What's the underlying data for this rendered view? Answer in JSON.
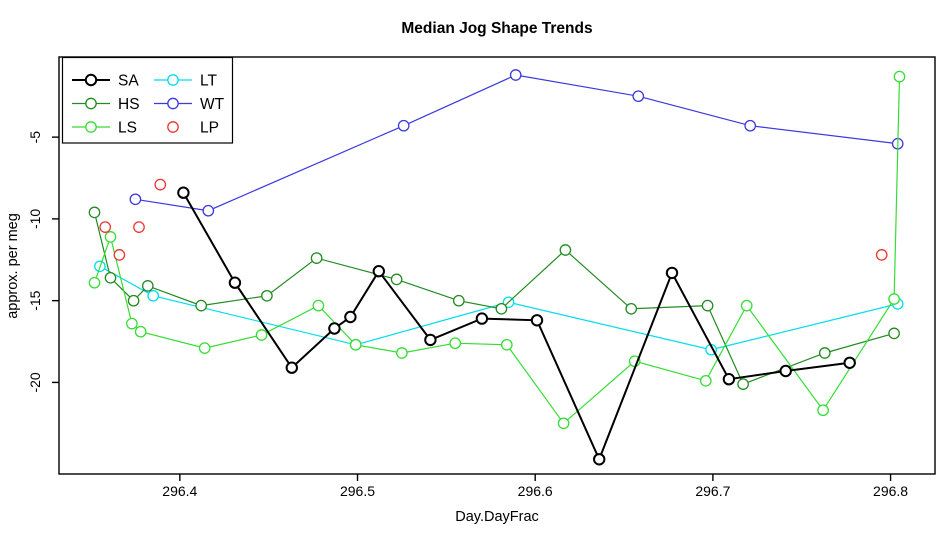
{
  "chart_data": {
    "type": "line",
    "title": "Median Jog Shape Trends",
    "xlabel": "Day.DayFrac",
    "ylabel": "approx. per meg",
    "xlim": [
      296.332,
      296.825
    ],
    "ylim": [
      -25.6,
      -0.1
    ],
    "x_ticks": [
      296.4,
      296.5,
      296.6,
      296.7,
      296.8
    ],
    "y_ticks": [
      -5,
      -10,
      -15,
      -20
    ],
    "grid": false,
    "legend_position": "topleft",
    "legend_columns": [
      [
        "SA",
        "HS",
        "LS"
      ],
      [
        "LT",
        "WT",
        "LP"
      ]
    ],
    "series": [
      {
        "name": "SA",
        "color": "#000000",
        "line_style": "solid",
        "line_width": 2,
        "marker": "open-circle",
        "points": [
          [
            296.402,
            -8.4
          ],
          [
            296.431,
            -13.9
          ],
          [
            296.463,
            -19.1
          ],
          [
            296.487,
            -16.7
          ],
          [
            296.496,
            -16.0
          ],
          [
            296.512,
            -13.2
          ],
          [
            296.541,
            -17.4
          ],
          [
            296.57,
            -16.1
          ],
          [
            296.601,
            -16.2
          ],
          [
            296.636,
            -24.7
          ],
          [
            296.677,
            -13.3
          ],
          [
            296.709,
            -19.8
          ],
          [
            296.741,
            -19.3
          ],
          [
            296.777,
            -18.8
          ]
        ]
      },
      {
        "name": "HS",
        "color": "#228B22",
        "line_style": "solid",
        "line_width": 1.2,
        "marker": "open-circle",
        "points": [
          [
            296.352,
            -9.6
          ],
          [
            296.361,
            -13.6
          ],
          [
            296.374,
            -15.0
          ],
          [
            296.382,
            -14.1
          ],
          [
            296.412,
            -15.3
          ],
          [
            296.449,
            -14.7
          ],
          [
            296.477,
            -12.4
          ],
          [
            296.522,
            -13.7
          ],
          [
            296.557,
            -15.0
          ],
          [
            296.581,
            -15.5
          ],
          [
            296.617,
            -11.9
          ],
          [
            296.654,
            -15.5
          ],
          [
            296.697,
            -15.3
          ],
          [
            296.717,
            -20.1
          ],
          [
            296.763,
            -18.2
          ],
          [
            296.802,
            -17.0
          ]
        ]
      },
      {
        "name": "LS",
        "color": "#35DD35",
        "line_style": "solid",
        "line_width": 1.2,
        "marker": "open-circle",
        "points": [
          [
            296.352,
            -13.9
          ],
          [
            296.361,
            -11.1
          ],
          [
            296.373,
            -16.4
          ],
          [
            296.378,
            -16.9
          ],
          [
            296.414,
            -17.9
          ],
          [
            296.446,
            -17.1
          ],
          [
            296.478,
            -15.3
          ],
          [
            296.499,
            -17.7
          ],
          [
            296.525,
            -18.2
          ],
          [
            296.555,
            -17.6
          ],
          [
            296.584,
            -17.7
          ],
          [
            296.616,
            -22.5
          ],
          [
            296.656,
            -18.7
          ],
          [
            296.696,
            -19.9
          ],
          [
            296.719,
            -15.3
          ],
          [
            296.762,
            -21.7
          ],
          [
            296.802,
            -14.9
          ],
          [
            296.805,
            -1.3
          ]
        ]
      },
      {
        "name": "LT",
        "color": "#00DDEE",
        "line_style": "solid",
        "line_width": 1.2,
        "marker": "open-circle",
        "points": [
          [
            296.355,
            -12.9
          ],
          [
            296.385,
            -14.7
          ],
          [
            296.499,
            -17.7
          ],
          [
            296.585,
            -15.1
          ],
          [
            296.699,
            -18.0
          ],
          [
            296.804,
            -15.2
          ]
        ]
      },
      {
        "name": "WT",
        "color": "#3A3ADD",
        "line_style": "solid",
        "line_width": 1.2,
        "marker": "open-circle",
        "points": [
          [
            296.375,
            -8.8
          ],
          [
            296.416,
            -9.5
          ],
          [
            296.526,
            -4.3
          ],
          [
            296.589,
            -1.2
          ],
          [
            296.658,
            -2.5
          ],
          [
            296.721,
            -4.3
          ],
          [
            296.804,
            -5.4
          ]
        ]
      },
      {
        "name": "LP",
        "color": "#EE3333",
        "line_style": "none",
        "line_width": 1.2,
        "marker": "open-circle",
        "points": [
          [
            296.358,
            -10.5
          ],
          [
            296.366,
            -12.2
          ],
          [
            296.377,
            -10.5
          ],
          [
            296.389,
            -7.9
          ],
          [
            296.795,
            -12.2
          ]
        ]
      }
    ]
  }
}
